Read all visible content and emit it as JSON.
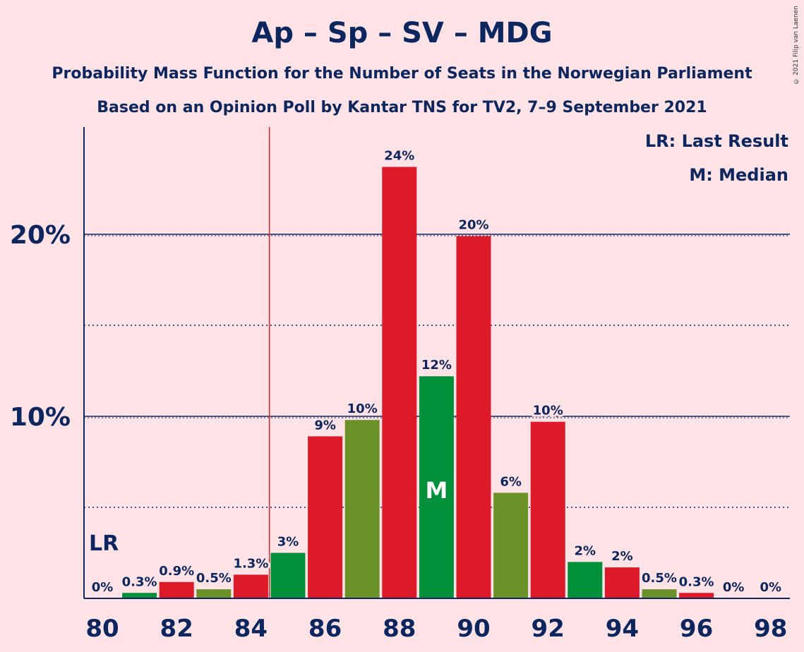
{
  "title": "Ap – Sp – SV – MDG",
  "subtitle_1": "Probability Mass Function for the Number of Seats in the Norwegian Parliament",
  "subtitle_2": "Based on an Opinion Poll by Kantar TNS for TV2, 7–9 September 2021",
  "legend": {
    "last_result": "LR: Last Result",
    "median": "M: Median"
  },
  "copyright": "© 2021 Filip van Laenen",
  "markers": {
    "last_result_label": "LR",
    "median_label": "M"
  },
  "colors": {
    "background": "#ffe3e6",
    "text": "#0c2660",
    "red": "#dd1a2a",
    "green": "#00903a",
    "olive": "#6a9228",
    "last_result_line": "#e8262d"
  },
  "chart_data": {
    "type": "bar",
    "x": [
      80,
      81,
      82,
      83,
      84,
      85,
      86,
      87,
      88,
      89,
      90,
      91,
      92,
      93,
      94,
      95,
      96,
      97,
      98
    ],
    "values": [
      0,
      0.3,
      0.9,
      0.5,
      1.3,
      2.5,
      8.9,
      9.8,
      23.7,
      12.2,
      19.9,
      5.8,
      9.7,
      2.0,
      1.7,
      0.5,
      0.3,
      0,
      0
    ],
    "labels": [
      "0%",
      "0.3%",
      "0.9%",
      "0.5%",
      "1.3%",
      "3%",
      "9%",
      "10%",
      "24%",
      "12%",
      "20%",
      "6%",
      "10%",
      "2%",
      "2%",
      "0.5%",
      "0.3%",
      "0%",
      "0%"
    ],
    "bar_colors": [
      "red",
      "green",
      "red",
      "olive",
      "red",
      "green",
      "red",
      "olive",
      "red",
      "green",
      "red",
      "olive",
      "red",
      "green",
      "red",
      "olive",
      "red",
      "green",
      "red"
    ],
    "x_tick_labels": [
      "80",
      "82",
      "84",
      "86",
      "88",
      "90",
      "92",
      "94",
      "96",
      "98"
    ],
    "y_tick_labels": [
      "10%",
      "20%"
    ],
    "ylim": [
      0,
      25
    ],
    "gridlines_major": [
      10,
      20
    ],
    "gridlines_minor": [
      5,
      15
    ],
    "last_result": 84.5,
    "median": 89
  }
}
